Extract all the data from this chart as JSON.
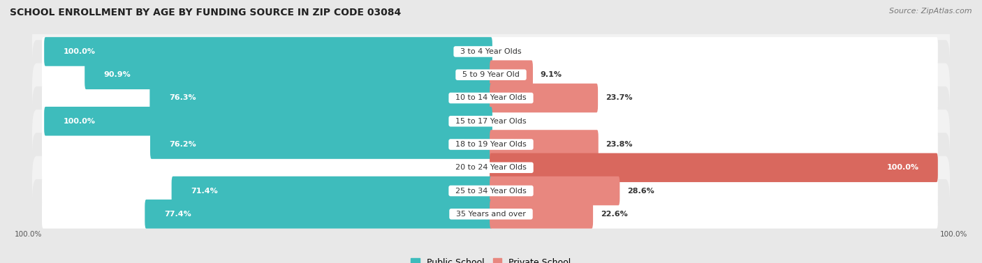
{
  "title": "SCHOOL ENROLLMENT BY AGE BY FUNDING SOURCE IN ZIP CODE 03084",
  "source": "Source: ZipAtlas.com",
  "categories": [
    "3 to 4 Year Olds",
    "5 to 9 Year Old",
    "10 to 14 Year Olds",
    "15 to 17 Year Olds",
    "18 to 19 Year Olds",
    "20 to 24 Year Olds",
    "25 to 34 Year Olds",
    "35 Years and over"
  ],
  "public_values": [
    100.0,
    90.9,
    76.3,
    100.0,
    76.2,
    0.0,
    71.4,
    77.4
  ],
  "private_values": [
    0.0,
    9.1,
    23.7,
    0.0,
    23.8,
    100.0,
    28.6,
    22.6
  ],
  "public_color": "#3ebcbc",
  "private_color": "#e8877f",
  "private_color_full": "#d9685e",
  "public_label": "Public School",
  "private_label": "Private School",
  "bg_color": "#e8e8e8",
  "row_bg_even": "#f2f2f2",
  "row_bg_odd": "#e8e8e8",
  "bar_bg_color": "#ffffff",
  "label_white": "#ffffff",
  "label_dark": "#333333",
  "axis_label_left": "100.0%",
  "axis_label_right": "100.0%",
  "title_fontsize": 10,
  "source_fontsize": 8,
  "bar_label_fontsize": 8,
  "category_fontsize": 8,
  "max_val": 100
}
